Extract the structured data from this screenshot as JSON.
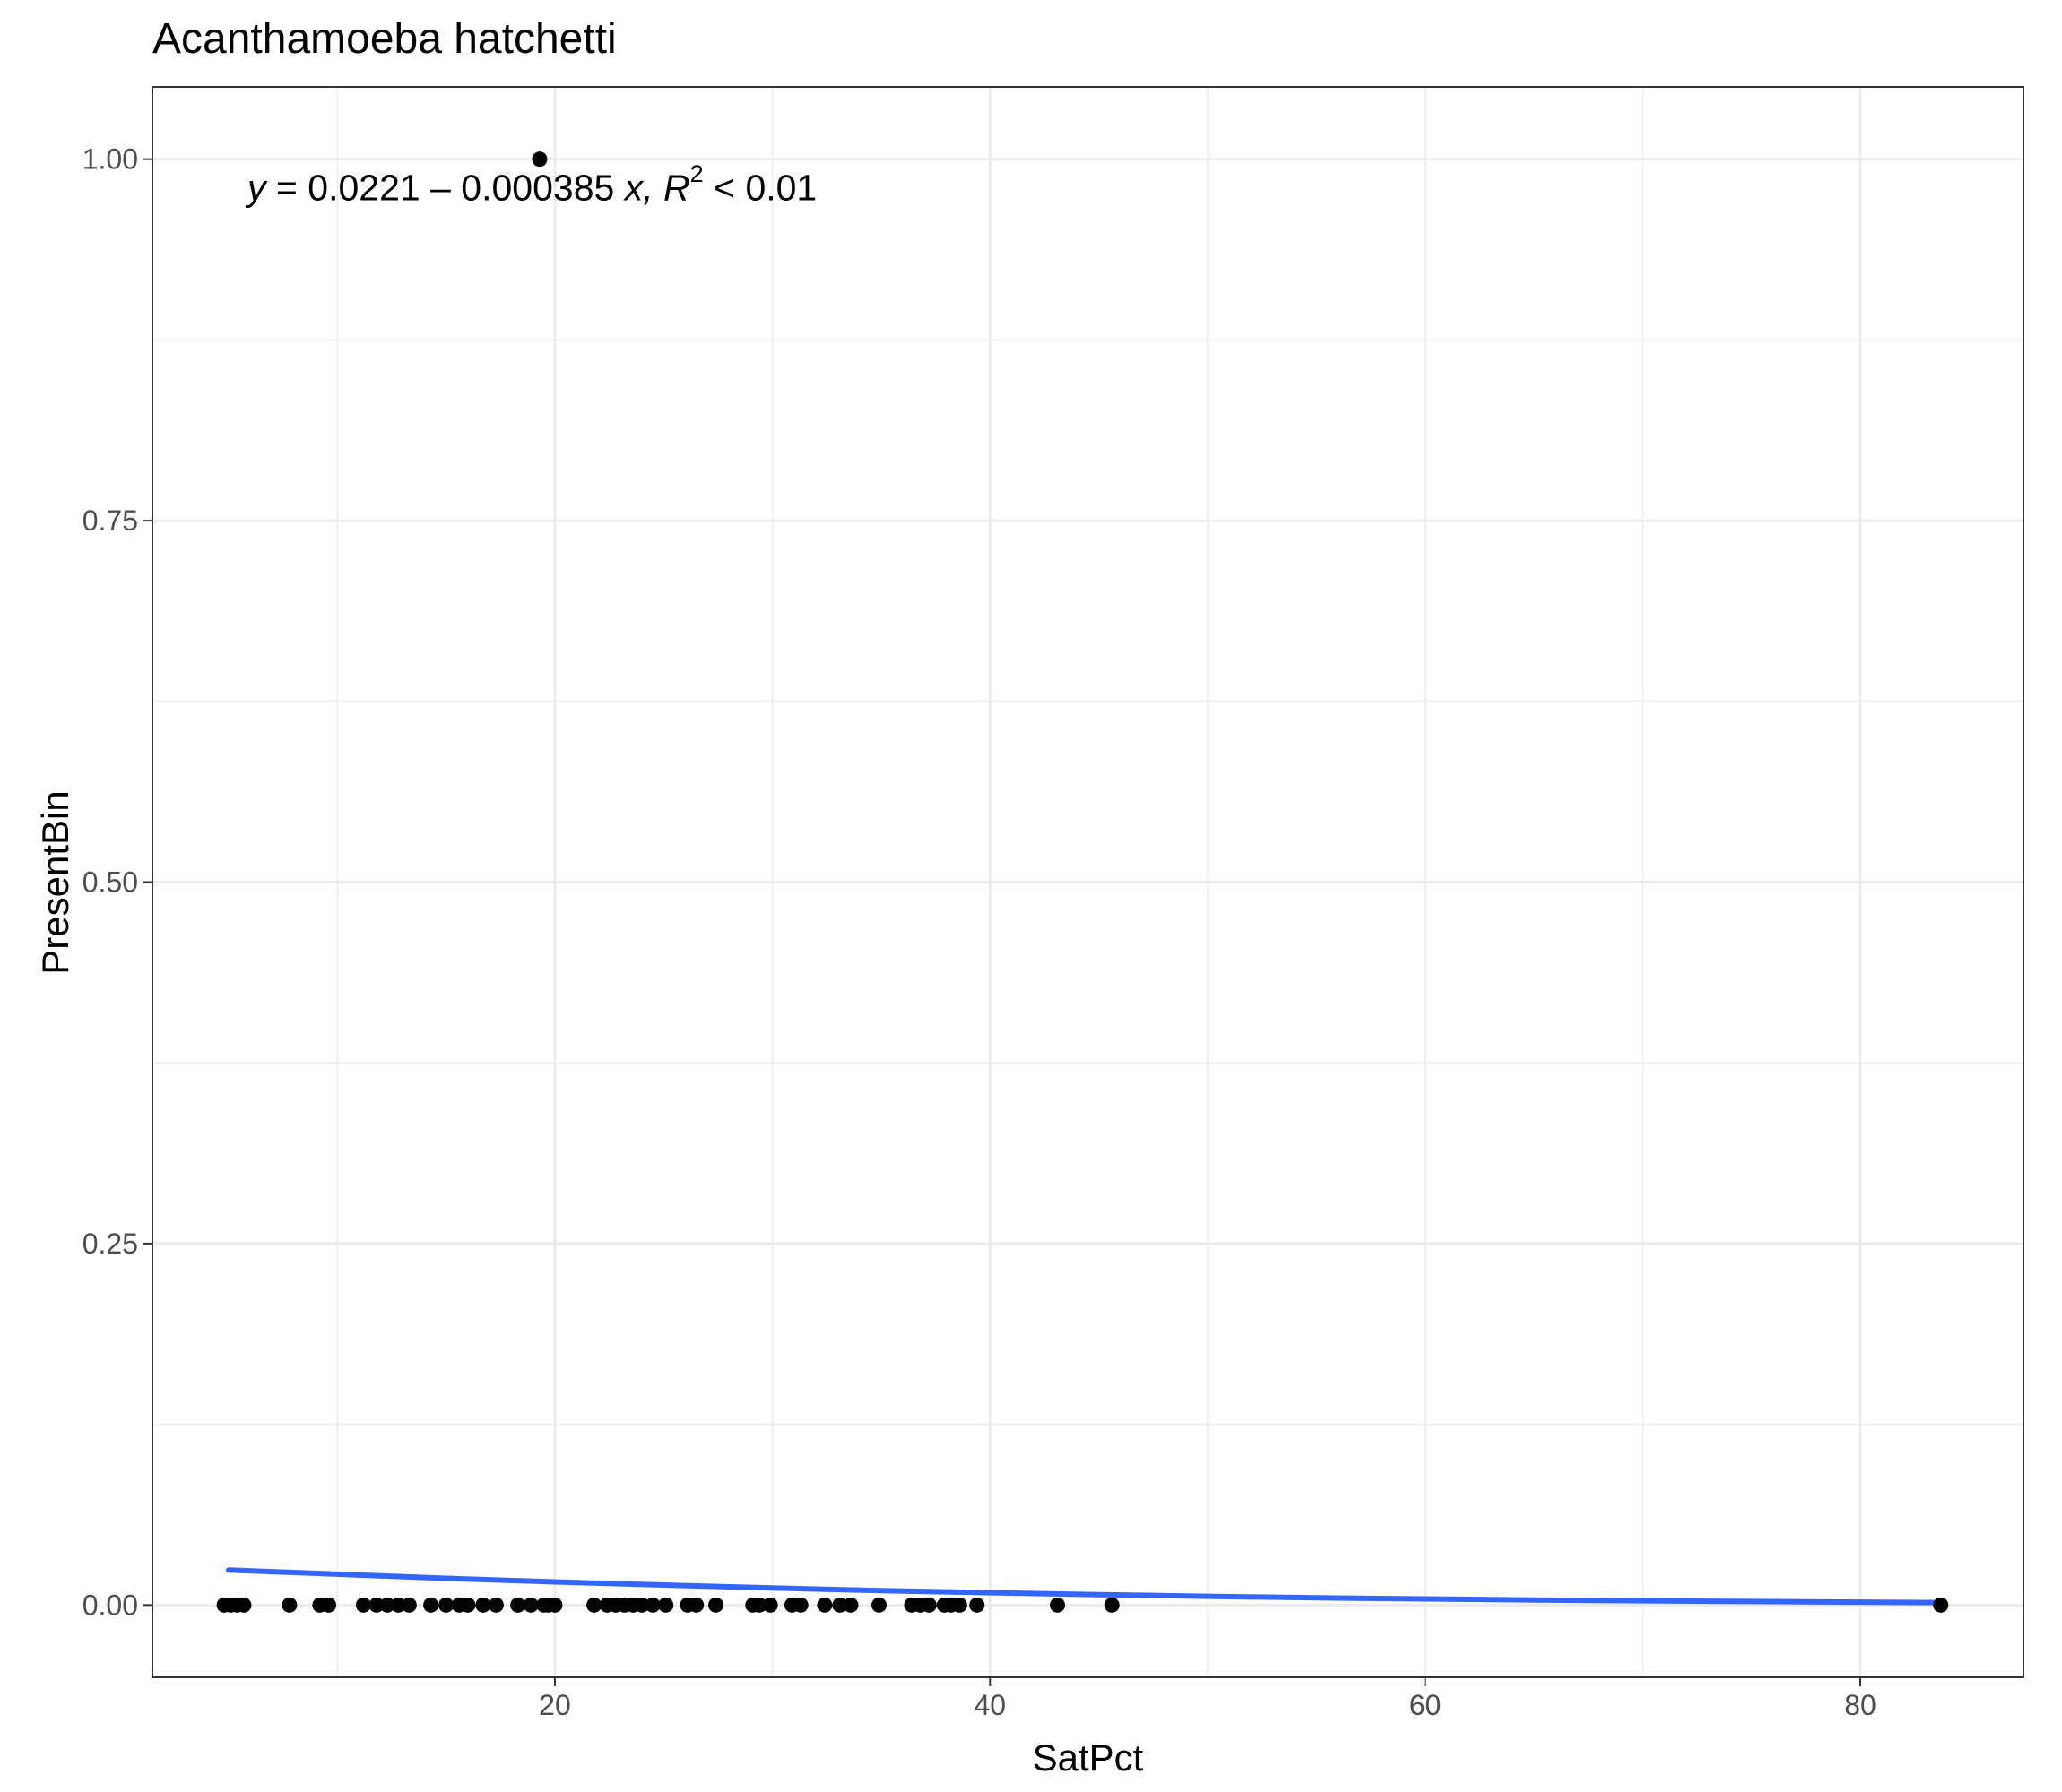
{
  "chart_data": {
    "type": "scatter",
    "title": "Acanthamoeba hatchetti",
    "xlabel": "SatPct",
    "ylabel": "PresentBin",
    "xlim": [
      1.5,
      87.5
    ],
    "ylim": [
      -0.05,
      1.05
    ],
    "x_ticks": [
      20,
      40,
      60,
      80
    ],
    "x_tick_labels": [
      "20",
      "40",
      "60",
      "80"
    ],
    "x_minor_ticks": [
      10,
      30,
      50,
      70
    ],
    "y_ticks": [
      0,
      0.25,
      0.5,
      0.75,
      1.0
    ],
    "y_tick_labels": [
      "0.00",
      "0.25",
      "0.50",
      "0.75",
      "1.00"
    ],
    "y_minor_ticks": [
      0.125,
      0.375,
      0.625,
      0.875
    ],
    "grid": true,
    "annotation": {
      "y_text": "y",
      "equals": "=",
      "intercept": "0.0221",
      "minus": "–",
      "slope": "0.000385",
      "x_text": "x,",
      "r_text": "R",
      "r_sup": "2",
      "lt": "<",
      "r_value": "0.01"
    },
    "series": [
      {
        "type": "points",
        "color": "#000000",
        "x": [
          4.8,
          5.1,
          5.4,
          5.7,
          7.8,
          9.2,
          9.6,
          11.2,
          11.8,
          12.3,
          12.8,
          13.3,
          14.3,
          15.0,
          15.6,
          16.0,
          16.7,
          17.3,
          18.3,
          18.9,
          19.5,
          19.7,
          20.0,
          21.8,
          22.4,
          22.8,
          23.2,
          23.6,
          24.0,
          24.5,
          25.1,
          26.1,
          26.5,
          27.4,
          29.1,
          29.4,
          29.9,
          30.9,
          31.3,
          32.4,
          33.1,
          33.6,
          34.9,
          36.4,
          36.8,
          37.2,
          37.9,
          38.2,
          38.6,
          39.4,
          43.1,
          45.6,
          83.7
        ],
        "y": [
          0,
          0,
          0,
          0,
          0,
          0,
          0,
          0,
          0,
          0,
          0,
          0,
          0,
          0,
          0,
          0,
          0,
          0,
          0,
          0,
          0,
          0,
          0,
          0,
          0,
          0,
          0,
          0,
          0,
          0,
          0,
          0,
          0,
          0,
          0,
          0,
          0,
          0,
          0,
          0,
          0,
          0,
          0,
          0,
          0,
          0,
          0,
          0,
          0,
          0,
          0,
          0,
          0
        ]
      },
      {
        "type": "points",
        "color": "#000000",
        "x": [
          19.3
        ],
        "y": [
          1.0
        ]
      },
      {
        "type": "line",
        "color": "#3366FF",
        "x": [
          5,
          10,
          15,
          20,
          25,
          30,
          35,
          40,
          45,
          50,
          55,
          60,
          65,
          70,
          75,
          80,
          83.7
        ],
        "y": [
          0.0242,
          0.0213,
          0.0185,
          0.016,
          0.0138,
          0.0118,
          0.01,
          0.0085,
          0.0072,
          0.006,
          0.005,
          0.0042,
          0.0035,
          0.0029,
          0.0024,
          0.002,
          0.0017
        ]
      }
    ]
  }
}
